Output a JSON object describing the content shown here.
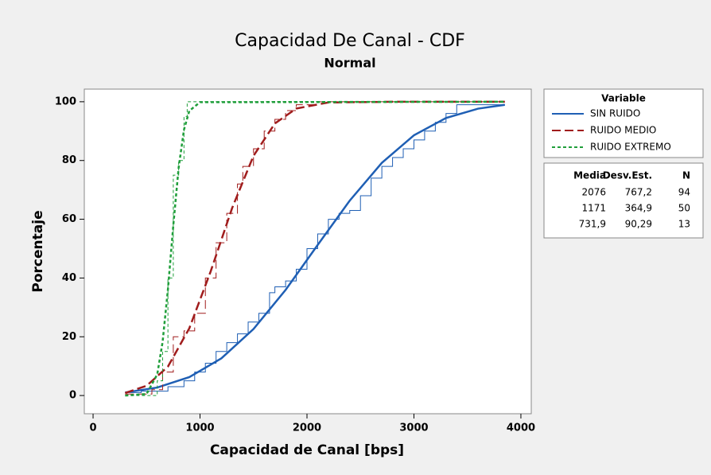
{
  "chart_data": {
    "type": "line",
    "title": "Capacidad De Canal - CDF",
    "subtitle": "Normal",
    "xlabel": "Capacidad de Canal [bps]",
    "ylabel": "Porcentaje",
    "xlim": [
      -82,
      4097
    ],
    "ylim": [
      -6.2,
      104.3
    ],
    "xticks": [
      0,
      1000,
      2000,
      3000,
      4000
    ],
    "yticks": [
      0,
      20,
      40,
      60,
      80,
      100
    ],
    "legend_title": "Variable",
    "series": [
      {
        "name": "SIN RUIDO",
        "color": "#1f5fb4",
        "dash": "none",
        "x": [
          300,
          600,
          900,
          1200,
          1500,
          1800,
          2100,
          2400,
          2700,
          3000,
          3300,
          3600,
          3850
        ],
        "values": [
          1.03,
          2.72,
          6.26,
          12.67,
          22.63,
          35.95,
          51.25,
          66.36,
          79.21,
          88.59,
          94.48,
          97.65,
          98.96
        ],
        "step_x": [
          300,
          450,
          700,
          850,
          950,
          1050,
          1150,
          1250,
          1350,
          1450,
          1550,
          1650,
          1700,
          1800,
          1900,
          2000,
          2100,
          2200,
          2300,
          2400,
          2500,
          2600,
          2700,
          2800,
          2900,
          3000,
          3100,
          3200,
          3300,
          3400,
          3850
        ],
        "step_values": [
          1,
          1.5,
          3,
          5,
          8,
          11,
          15,
          18,
          21,
          25,
          28,
          35,
          37,
          39,
          43,
          50,
          55,
          60,
          62,
          63,
          68,
          74,
          78,
          81,
          84,
          87,
          90,
          93,
          96,
          99,
          99
        ]
      },
      {
        "name": "RUIDO MEDIO",
        "color": "#a01c1c",
        "dash": "11,5",
        "x": [
          300,
          500,
          700,
          900,
          1100,
          1300,
          1500,
          1700,
          1900,
          2200,
          2800,
          3850
        ],
        "values": [
          0.85,
          3.3,
          9.85,
          22.9,
          42.3,
          63.8,
          81.6,
          92.6,
          97.7,
          99.76,
          99.99,
          100
        ],
        "step_x": [
          300,
          550,
          650,
          750,
          850,
          950,
          1050,
          1150,
          1250,
          1350,
          1400,
          1500,
          1600,
          1700,
          1800,
          1900,
          2100,
          3850
        ],
        "step_values": [
          0.5,
          2,
          8,
          20,
          22,
          28,
          40,
          52,
          62,
          72,
          78,
          84,
          90,
          94,
          97,
          99,
          100,
          100
        ]
      },
      {
        "name": "RUIDO EXTREMO",
        "color": "#1f9e3a",
        "dash": "4,3",
        "x": [
          300,
          500,
          600,
          650,
          700,
          750,
          800,
          850,
          900,
          1000,
          3850
        ],
        "values": [
          0,
          0.51,
          7.2,
          18.2,
          36.2,
          57.9,
          77.5,
          90.5,
          96.9,
          99.85,
          100
        ],
        "step_x": [
          300,
          580,
          600,
          650,
          700,
          750,
          800,
          850,
          880,
          3850
        ],
        "step_values": [
          0,
          0,
          5,
          15,
          40,
          75,
          80,
          95,
          100,
          100
        ]
      }
    ],
    "stats": {
      "columns": [
        "Media",
        "Desv.Est.",
        "N"
      ],
      "rows": [
        [
          "2076",
          "767,2",
          "94"
        ],
        [
          "1171",
          "364,9",
          "50"
        ],
        [
          "731,9",
          "90,29",
          "13"
        ]
      ]
    }
  }
}
